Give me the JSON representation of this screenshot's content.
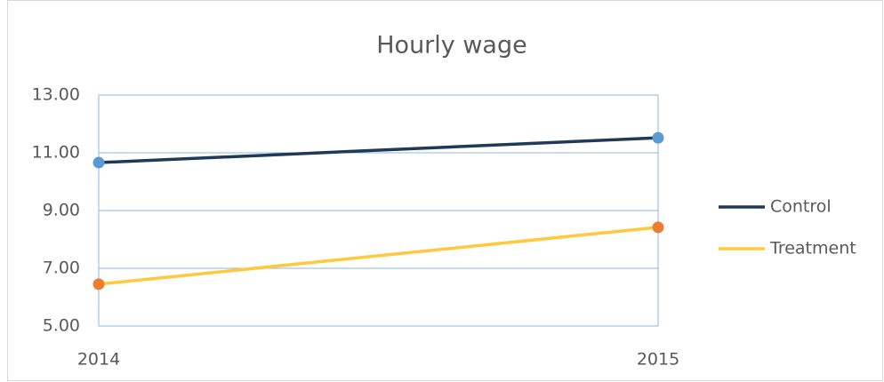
{
  "chart_data": {
    "type": "line",
    "title": "Hourly wage",
    "categories": [
      "2014",
      "2015"
    ],
    "series": [
      {
        "name": "Control",
        "color": "#1f3a56",
        "marker_color": "#5b9bd5",
        "values": [
          10.66,
          11.52
        ]
      },
      {
        "name": "Treatment",
        "color": "#ffc83d",
        "marker_color": "#ed7d31",
        "values": [
          6.45,
          8.42
        ]
      }
    ],
    "ylim": [
      5,
      13
    ],
    "yticks": [
      {
        "value": 5,
        "label": "5.00"
      },
      {
        "value": 7,
        "label": "7.00"
      },
      {
        "value": 9,
        "label": "9.00"
      },
      {
        "value": 11,
        "label": "11.00"
      },
      {
        "value": 13,
        "label": "13.00"
      }
    ],
    "grid": true,
    "legend": "right"
  }
}
